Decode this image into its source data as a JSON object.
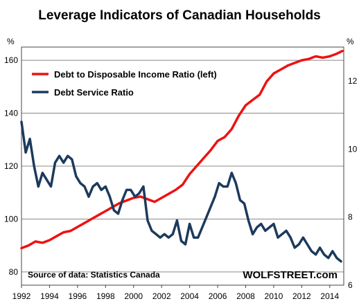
{
  "chart_data": {
    "type": "line",
    "title": "Leverage Indicators of Canadian Households",
    "left_axis": {
      "unit": "%",
      "ylim": [
        75,
        165
      ],
      "ticks": [
        80,
        100,
        120,
        140,
        160
      ]
    },
    "right_axis": {
      "unit": "%",
      "ylim": [
        6.0,
        13.0
      ],
      "ticks": [
        6,
        8,
        10,
        12
      ]
    },
    "x_axis": {
      "xlim": [
        1992,
        2015
      ],
      "ticks": [
        1992,
        1994,
        1996,
        1998,
        2000,
        2002,
        2004,
        2006,
        2008,
        2010,
        2012,
        2014
      ]
    },
    "grid": true,
    "legend_placement": "top-left",
    "series": [
      {
        "name": "Debt to Disposable Income Ratio (left)",
        "axis": "left",
        "color": "#ee1111",
        "x": [
          1992.0,
          1992.5,
          1993.0,
          1993.5,
          1994.0,
          1994.5,
          1995.0,
          1995.5,
          1996.0,
          1996.5,
          1997.0,
          1997.5,
          1998.0,
          1998.5,
          1999.0,
          1999.5,
          2000.0,
          2000.5,
          2001.0,
          2001.5,
          2002.0,
          2002.5,
          2003.0,
          2003.5,
          2004.0,
          2004.5,
          2005.0,
          2005.5,
          2006.0,
          2006.5,
          2007.0,
          2007.5,
          2008.0,
          2008.5,
          2009.0,
          2009.5,
          2010.0,
          2010.5,
          2011.0,
          2011.5,
          2012.0,
          2012.5,
          2013.0,
          2013.5,
          2014.0,
          2014.5,
          2014.9
        ],
        "values": [
          89.0,
          90.0,
          91.5,
          91.0,
          92.0,
          93.5,
          95.0,
          95.5,
          97.0,
          98.5,
          100.0,
          101.5,
          103.0,
          104.5,
          106.0,
          107.0,
          108.0,
          108.5,
          107.5,
          106.5,
          108.0,
          109.5,
          111.0,
          113.0,
          117.0,
          120.0,
          123.0,
          126.0,
          129.5,
          131.0,
          134.0,
          139.0,
          143.0,
          145.0,
          147.0,
          152.0,
          155.0,
          156.5,
          158.0,
          159.0,
          160.0,
          160.5,
          161.5,
          161.0,
          161.5,
          162.5,
          163.5
        ]
      },
      {
        "name": "Debt Service Ratio",
        "axis": "right",
        "color": "#1c3a5c",
        "x": [
          1992.0,
          1992.3,
          1992.6,
          1992.9,
          1993.2,
          1993.5,
          1993.8,
          1994.1,
          1994.4,
          1994.7,
          1995.0,
          1995.3,
          1995.6,
          1995.9,
          1996.2,
          1996.5,
          1996.8,
          1997.1,
          1997.4,
          1997.7,
          1998.0,
          1998.3,
          1998.6,
          1998.9,
          1999.2,
          1999.5,
          1999.8,
          2000.1,
          2000.4,
          2000.7,
          2001.0,
          2001.3,
          2001.6,
          2001.9,
          2002.2,
          2002.5,
          2002.8,
          2003.1,
          2003.4,
          2003.7,
          2004.0,
          2004.3,
          2004.6,
          2004.9,
          2005.2,
          2005.5,
          2005.8,
          2006.1,
          2006.4,
          2006.7,
          2007.0,
          2007.3,
          2007.6,
          2007.9,
          2008.2,
          2008.5,
          2008.8,
          2009.1,
          2009.4,
          2009.7,
          2010.0,
          2010.3,
          2010.6,
          2010.9,
          2011.2,
          2011.5,
          2011.8,
          2012.1,
          2012.4,
          2012.7,
          2013.0,
          2013.3,
          2013.6,
          2013.9,
          2014.2,
          2014.5,
          2014.8
        ],
        "values": [
          10.8,
          9.9,
          10.3,
          9.5,
          8.9,
          9.3,
          9.1,
          8.9,
          9.6,
          9.8,
          9.6,
          9.8,
          9.7,
          9.2,
          9.0,
          8.9,
          8.6,
          8.9,
          9.0,
          8.8,
          8.9,
          8.6,
          8.2,
          8.1,
          8.5,
          8.8,
          8.8,
          8.6,
          8.7,
          8.9,
          7.9,
          7.6,
          7.5,
          7.4,
          7.5,
          7.4,
          7.5,
          7.9,
          7.3,
          7.2,
          7.8,
          7.4,
          7.4,
          7.7,
          8.0,
          8.3,
          8.6,
          9.0,
          8.9,
          8.9,
          9.3,
          9.0,
          8.5,
          8.4,
          7.9,
          7.5,
          7.7,
          7.8,
          7.6,
          7.7,
          7.8,
          7.4,
          7.5,
          7.6,
          7.4,
          7.1,
          7.2,
          7.4,
          7.2,
          7.0,
          6.9,
          7.1,
          6.9,
          6.8,
          7.0,
          6.8,
          6.7
        ]
      }
    ]
  },
  "footer": {
    "source": "Source of data: Statistics Canada",
    "brand": "WOLFSTREET.com"
  }
}
